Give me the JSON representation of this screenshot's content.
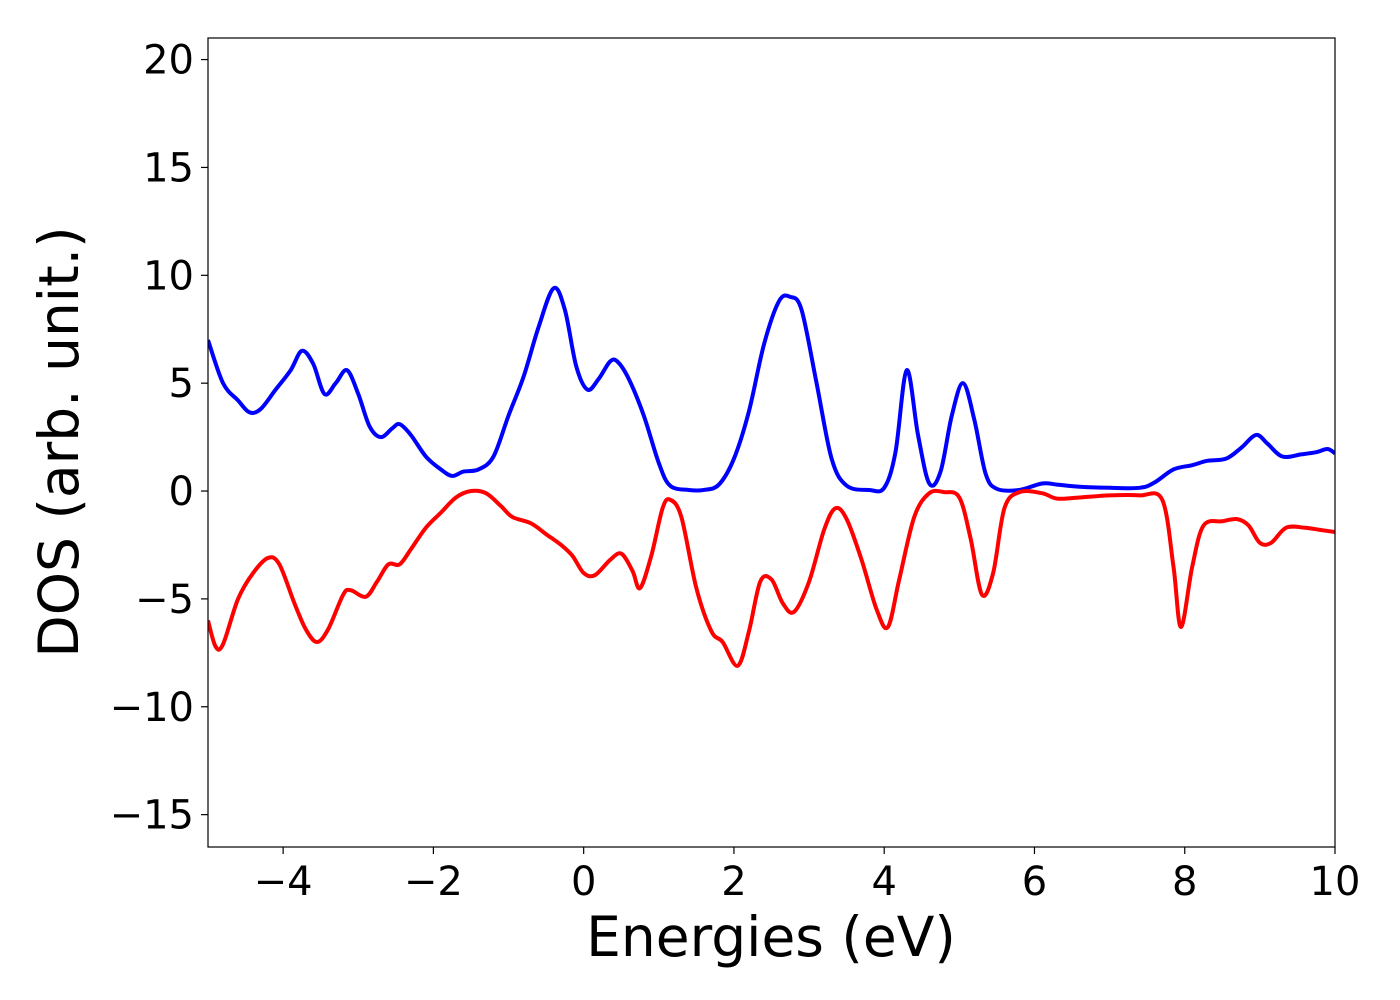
{
  "chart_data": {
    "type": "line",
    "xlabel": "Energies (eV)",
    "ylabel": "DOS (arb. unit.)",
    "xlim": [
      -5,
      10
    ],
    "ylim": [
      -16.5,
      21
    ],
    "xticks": [
      -4,
      -2,
      0,
      2,
      4,
      6,
      8,
      10
    ],
    "xtick_labels": [
      "−4",
      "−2",
      "0",
      "2",
      "4",
      "6",
      "8",
      "10"
    ],
    "yticks": [
      -15,
      -10,
      -5,
      0,
      5,
      10,
      15,
      20
    ],
    "ytick_labels": [
      "−15",
      "−10",
      "−5",
      "0",
      "5",
      "10",
      "15",
      "20"
    ],
    "grid": false,
    "legend": "none",
    "series": [
      {
        "color": "#0000ff",
        "points": [
          [
            -5.0,
            7.0
          ],
          [
            -4.8,
            5.0
          ],
          [
            -4.6,
            4.2
          ],
          [
            -4.45,
            3.65
          ],
          [
            -4.3,
            3.8
          ],
          [
            -4.1,
            4.7
          ],
          [
            -3.9,
            5.6
          ],
          [
            -3.75,
            6.5
          ],
          [
            -3.6,
            5.9
          ],
          [
            -3.45,
            4.5
          ],
          [
            -3.3,
            5.0
          ],
          [
            -3.15,
            5.6
          ],
          [
            -3.0,
            4.5
          ],
          [
            -2.85,
            3.0
          ],
          [
            -2.7,
            2.5
          ],
          [
            -2.55,
            2.9
          ],
          [
            -2.45,
            3.1
          ],
          [
            -2.3,
            2.6
          ],
          [
            -2.1,
            1.6
          ],
          [
            -1.9,
            1.0
          ],
          [
            -1.75,
            0.7
          ],
          [
            -1.6,
            0.9
          ],
          [
            -1.4,
            1.0
          ],
          [
            -1.2,
            1.6
          ],
          [
            -1.0,
            3.5
          ],
          [
            -0.8,
            5.3
          ],
          [
            -0.6,
            7.6
          ],
          [
            -0.4,
            9.4
          ],
          [
            -0.25,
            8.4
          ],
          [
            -0.1,
            5.8
          ],
          [
            0.05,
            4.7
          ],
          [
            0.2,
            5.2
          ],
          [
            0.35,
            6.0
          ],
          [
            0.45,
            6.0
          ],
          [
            0.6,
            5.2
          ],
          [
            0.8,
            3.5
          ],
          [
            1.0,
            1.3
          ],
          [
            1.15,
            0.25
          ],
          [
            1.4,
            0.05
          ],
          [
            1.6,
            0.05
          ],
          [
            1.8,
            0.3
          ],
          [
            2.0,
            1.5
          ],
          [
            2.2,
            3.7
          ],
          [
            2.4,
            6.8
          ],
          [
            2.6,
            8.8
          ],
          [
            2.75,
            9.0
          ],
          [
            2.9,
            8.4
          ],
          [
            3.1,
            5.0
          ],
          [
            3.3,
            1.5
          ],
          [
            3.5,
            0.25
          ],
          [
            3.8,
            0.05
          ],
          [
            4.0,
            0.15
          ],
          [
            4.15,
            1.8
          ],
          [
            4.3,
            5.6
          ],
          [
            4.45,
            2.6
          ],
          [
            4.6,
            0.35
          ],
          [
            4.75,
            0.9
          ],
          [
            4.9,
            3.5
          ],
          [
            5.05,
            5.0
          ],
          [
            5.2,
            3.3
          ],
          [
            5.35,
            0.8
          ],
          [
            5.5,
            0.1
          ],
          [
            5.8,
            0.05
          ],
          [
            6.1,
            0.35
          ],
          [
            6.3,
            0.3
          ],
          [
            6.6,
            0.2
          ],
          [
            7.0,
            0.15
          ],
          [
            7.4,
            0.15
          ],
          [
            7.6,
            0.4
          ],
          [
            7.85,
            1.0
          ],
          [
            8.1,
            1.2
          ],
          [
            8.3,
            1.4
          ],
          [
            8.55,
            1.5
          ],
          [
            8.75,
            2.0
          ],
          [
            8.95,
            2.6
          ],
          [
            9.1,
            2.2
          ],
          [
            9.3,
            1.6
          ],
          [
            9.55,
            1.7
          ],
          [
            9.75,
            1.8
          ],
          [
            9.9,
            1.95
          ],
          [
            10.0,
            1.75
          ]
        ]
      },
      {
        "color": "#ff0000",
        "points": [
          [
            -5.0,
            -6.0
          ],
          [
            -4.9,
            -7.2
          ],
          [
            -4.8,
            -7.1
          ],
          [
            -4.6,
            -5.0
          ],
          [
            -4.4,
            -3.8
          ],
          [
            -4.2,
            -3.1
          ],
          [
            -4.05,
            -3.4
          ],
          [
            -3.85,
            -5.2
          ],
          [
            -3.7,
            -6.4
          ],
          [
            -3.55,
            -7.0
          ],
          [
            -3.4,
            -6.4
          ],
          [
            -3.2,
            -4.8
          ],
          [
            -3.1,
            -4.6
          ],
          [
            -2.9,
            -4.9
          ],
          [
            -2.75,
            -4.2
          ],
          [
            -2.6,
            -3.4
          ],
          [
            -2.45,
            -3.4
          ],
          [
            -2.3,
            -2.7
          ],
          [
            -2.1,
            -1.7
          ],
          [
            -1.9,
            -1.0
          ],
          [
            -1.7,
            -0.3
          ],
          [
            -1.5,
            0.0
          ],
          [
            -1.3,
            -0.1
          ],
          [
            -1.1,
            -0.7
          ],
          [
            -0.95,
            -1.2
          ],
          [
            -0.7,
            -1.5
          ],
          [
            -0.5,
            -2.0
          ],
          [
            -0.3,
            -2.5
          ],
          [
            -0.15,
            -3.0
          ],
          [
            0.0,
            -3.8
          ],
          [
            0.15,
            -3.9
          ],
          [
            0.35,
            -3.2
          ],
          [
            0.5,
            -2.9
          ],
          [
            0.65,
            -3.7
          ],
          [
            0.75,
            -4.5
          ],
          [
            0.9,
            -3.0
          ],
          [
            1.05,
            -0.8
          ],
          [
            1.15,
            -0.4
          ],
          [
            1.3,
            -1.2
          ],
          [
            1.5,
            -4.5
          ],
          [
            1.7,
            -6.5
          ],
          [
            1.85,
            -7.0
          ],
          [
            2.05,
            -8.1
          ],
          [
            2.2,
            -6.5
          ],
          [
            2.35,
            -4.2
          ],
          [
            2.5,
            -4.1
          ],
          [
            2.65,
            -5.2
          ],
          [
            2.8,
            -5.6
          ],
          [
            3.0,
            -4.2
          ],
          [
            3.2,
            -1.8
          ],
          [
            3.35,
            -0.8
          ],
          [
            3.5,
            -1.3
          ],
          [
            3.7,
            -3.2
          ],
          [
            3.9,
            -5.5
          ],
          [
            4.05,
            -6.3
          ],
          [
            4.2,
            -4.1
          ],
          [
            4.4,
            -1.2
          ],
          [
            4.6,
            -0.1
          ],
          [
            4.8,
            -0.05
          ],
          [
            5.0,
            -0.3
          ],
          [
            5.15,
            -2.2
          ],
          [
            5.3,
            -4.8
          ],
          [
            5.45,
            -3.8
          ],
          [
            5.6,
            -0.8
          ],
          [
            5.8,
            -0.05
          ],
          [
            6.1,
            -0.1
          ],
          [
            6.3,
            -0.35
          ],
          [
            6.6,
            -0.3
          ],
          [
            7.0,
            -0.2
          ],
          [
            7.4,
            -0.2
          ],
          [
            7.7,
            -0.4
          ],
          [
            7.85,
            -3.5
          ],
          [
            7.95,
            -6.3
          ],
          [
            8.1,
            -3.5
          ],
          [
            8.25,
            -1.6
          ],
          [
            8.5,
            -1.4
          ],
          [
            8.7,
            -1.3
          ],
          [
            8.85,
            -1.6
          ],
          [
            9.0,
            -2.4
          ],
          [
            9.15,
            -2.4
          ],
          [
            9.35,
            -1.7
          ],
          [
            9.6,
            -1.7
          ],
          [
            9.8,
            -1.8
          ],
          [
            10.0,
            -1.9
          ]
        ]
      }
    ]
  }
}
